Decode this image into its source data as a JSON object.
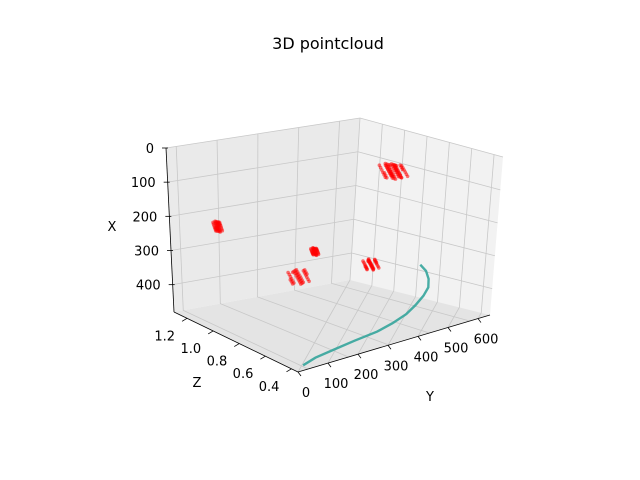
{
  "chart_data": {
    "type": "scatter3d",
    "title": "3D pointcloud",
    "axes": {
      "x": {
        "label": "X",
        "range": [
          0,
          480
        ],
        "ticks": [
          0,
          100,
          200,
          300,
          400
        ],
        "inverted": true
      },
      "y": {
        "label": "Y",
        "range": [
          0,
          640
        ],
        "ticks": [
          0,
          100,
          200,
          300,
          400,
          500,
          600
        ]
      },
      "z": {
        "label": "Z",
        "range": [
          0.35,
          1.3
        ],
        "ticks": [
          0.4,
          0.6,
          0.8,
          1.0,
          1.2
        ]
      }
    },
    "grid": true,
    "colors": {
      "cloud": "#ff0000",
      "curve": "#2aa198",
      "pane": "#f2f2f2"
    },
    "series": [
      {
        "name": "",
        "marker": "red-cluster",
        "clusters": [
          {
            "x": [
              20,
              55
            ],
            "y": [
              330,
              370
            ],
            "z": [
              0.4,
              0.48
            ]
          },
          {
            "x": [
              20,
              60
            ],
            "y": [
              320,
              360
            ],
            "z": [
              0.42,
              0.5
            ]
          },
          {
            "x": [
              220,
              250
            ],
            "y": [
              110,
              125
            ],
            "z": [
              1.18,
              1.22
            ]
          },
          {
            "x": [
              360,
              400
            ],
            "y": [
              270,
              330
            ],
            "z": [
              0.98,
              1.02
            ]
          },
          {
            "x": [
              350,
              380
            ],
            "y": [
              480,
              520
            ],
            "z": [
              0.88,
              0.92
            ]
          },
          {
            "x": [
              300,
              320
            ],
            "y": [
              330,
              345
            ],
            "z": [
              0.95,
              0.98
            ]
          }
        ]
      },
      {
        "name": "",
        "marker": "teal-line",
        "points": [
          [
            475,
            30,
            0.38
          ],
          [
            470,
            80,
            0.4
          ],
          [
            465,
            150,
            0.41
          ],
          [
            460,
            220,
            0.42
          ],
          [
            455,
            300,
            0.43
          ],
          [
            448,
            360,
            0.45
          ],
          [
            440,
            420,
            0.48
          ],
          [
            430,
            470,
            0.52
          ],
          [
            420,
            520,
            0.57
          ],
          [
            410,
            560,
            0.62
          ],
          [
            398,
            590,
            0.68
          ],
          [
            385,
            610,
            0.74
          ],
          [
            375,
            620,
            0.8
          ]
        ]
      }
    ]
  }
}
